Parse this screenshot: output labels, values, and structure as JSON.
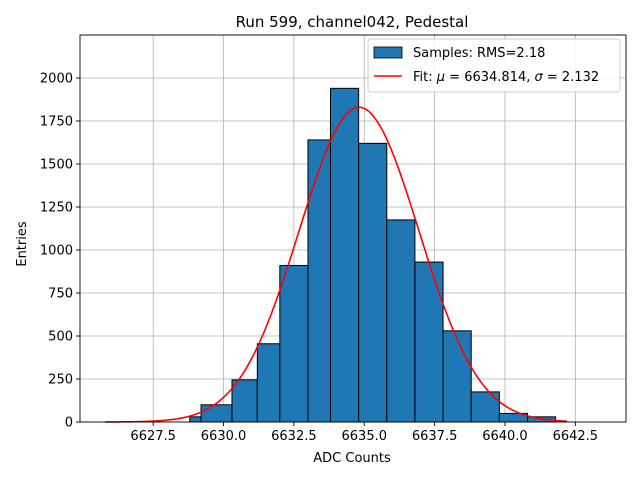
{
  "chart_data": {
    "type": "bar",
    "title": "Run 599, channel042, Pedestal",
    "xlabel": "ADC Counts",
    "ylabel": "Entries",
    "xlim": [
      6624.9,
      6644.3
    ],
    "ylim": [
      0,
      2250
    ],
    "grid": true,
    "legend_position": "top-right",
    "xticks": [
      {
        "value": 6627.5,
        "label": "6627.5"
      },
      {
        "value": 6630.0,
        "label": "6630.0"
      },
      {
        "value": 6632.5,
        "label": "6632.5"
      },
      {
        "value": 6635.0,
        "label": "6635.0"
      },
      {
        "value": 6637.5,
        "label": "6637.5"
      },
      {
        "value": 6640.0,
        "label": "6640.0"
      },
      {
        "value": 6642.5,
        "label": "6642.5"
      }
    ],
    "yticks": [
      {
        "value": 0,
        "label": "0"
      },
      {
        "value": 250,
        "label": "250"
      },
      {
        "value": 500,
        "label": "500"
      },
      {
        "value": 750,
        "label": "750"
      },
      {
        "value": 1000,
        "label": "1000"
      },
      {
        "value": 1250,
        "label": "1250"
      },
      {
        "value": 1500,
        "label": "1500"
      },
      {
        "value": 1750,
        "label": "1750"
      },
      {
        "value": 2000,
        "label": "2000"
      }
    ],
    "histogram": {
      "name": "Samples",
      "legend_label": "Samples: RMS=2.18",
      "color": "#1f77b4",
      "edge_color": "#000000",
      "bins": [
        {
          "x0": 6628.0,
          "x1": 6628.8,
          "count": 0
        },
        {
          "x0": 6628.8,
          "x1": 6629.2,
          "count": 30
        },
        {
          "x0": 6629.2,
          "x1": 6630.3,
          "count": 100
        },
        {
          "x0": 6630.3,
          "x1": 6631.2,
          "count": 245
        },
        {
          "x0": 6631.2,
          "x1": 6632.0,
          "count": 455
        },
        {
          "x0": 6632.0,
          "x1": 6633.0,
          "count": 910
        },
        {
          "x0": 6633.0,
          "x1": 6633.8,
          "count": 1640
        },
        {
          "x0": 6633.8,
          "x1": 6634.8,
          "count": 1940
        },
        {
          "x0": 6634.8,
          "x1": 6635.8,
          "count": 1620
        },
        {
          "x0": 6635.8,
          "x1": 6636.8,
          "count": 1175
        },
        {
          "x0": 6636.8,
          "x1": 6637.8,
          "count": 930
        },
        {
          "x0": 6637.8,
          "x1": 6638.8,
          "count": 530
        },
        {
          "x0": 6638.8,
          "x1": 6639.8,
          "count": 175
        },
        {
          "x0": 6639.8,
          "x1": 6640.8,
          "count": 50
        },
        {
          "x0": 6640.8,
          "x1": 6641.8,
          "count": 30
        }
      ]
    },
    "fit": {
      "name": "Fit",
      "legend_prefix": "Fit: ",
      "mu_symbol": "μ",
      "mu_text": " = 6634.814, ",
      "sigma_symbol": "σ",
      "sigma_text": " = 2.132",
      "color": "#ff0000",
      "mu": 6634.814,
      "sigma": 2.132,
      "amplitude": 1830,
      "x_range": [
        6625.8,
        6642.2
      ]
    }
  }
}
